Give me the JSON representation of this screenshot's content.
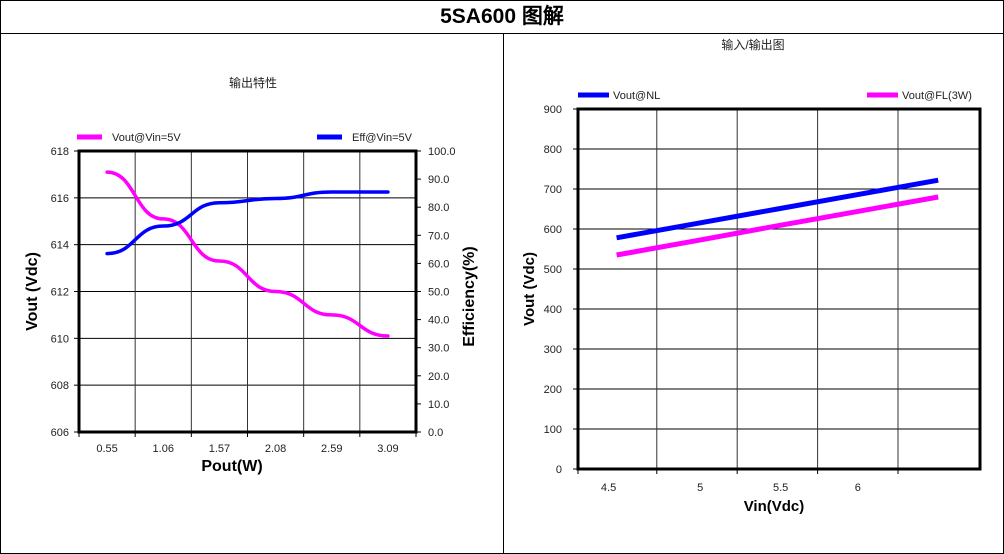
{
  "page_title": "5SA600 图解",
  "chart_data": [
    {
      "type": "line",
      "title": "输出特性",
      "xlabel": "Pout(W)",
      "ylabel": "Vout (Vdc)",
      "y2label": "Efficiency(%)",
      "categories": [
        "0.55",
        "1.06",
        "1.57",
        "2.08",
        "2.59",
        "3.09"
      ],
      "ylim": [
        606,
        618
      ],
      "yticks": [
        "606",
        "608",
        "610",
        "612",
        "614",
        "616",
        "618"
      ],
      "y2lim": [
        0,
        100
      ],
      "y2ticks": [
        "0.0",
        "10.0",
        "20.0",
        "30.0",
        "40.0",
        "50.0",
        "60.0",
        "70.0",
        "80.0",
        "90.0",
        "100.0"
      ],
      "grid": true,
      "legend": "top",
      "series": [
        {
          "name": "Vout@Vin=5V",
          "axis": "left",
          "color": "#ff00ff",
          "values": [
            617.1,
            615.1,
            613.3,
            612.0,
            611.0,
            610.1
          ]
        },
        {
          "name": "Eff@Vin=5V",
          "axis": "right",
          "color": "#0000ff",
          "values": [
            63.5,
            73.3,
            81.6,
            83.1,
            85.4,
            85.4
          ]
        }
      ]
    },
    {
      "type": "line",
      "title": "输入/输出图",
      "xlabel": "Vin(Vdc)",
      "ylabel": "Vout (Vdc)",
      "xticks": [
        "4.5",
        "5",
        "5.5",
        "6"
      ],
      "ylim": [
        0,
        900
      ],
      "yticks": [
        "0",
        "100",
        "200",
        "300",
        "400",
        "500",
        "600",
        "700",
        "800",
        "900"
      ],
      "grid": true,
      "legend": "top",
      "x": [
        4.5,
        5.0,
        5.5,
        6.0,
        6.5
      ],
      "series": [
        {
          "name": "Vout@NL",
          "color": "#0000ff",
          "values": [
            578,
            614,
            650,
            686,
            722
          ]
        },
        {
          "name": "Vout@FL(3W)",
          "color": "#ff00ff",
          "values": [
            535,
            571,
            608,
            644,
            680
          ]
        }
      ]
    }
  ]
}
